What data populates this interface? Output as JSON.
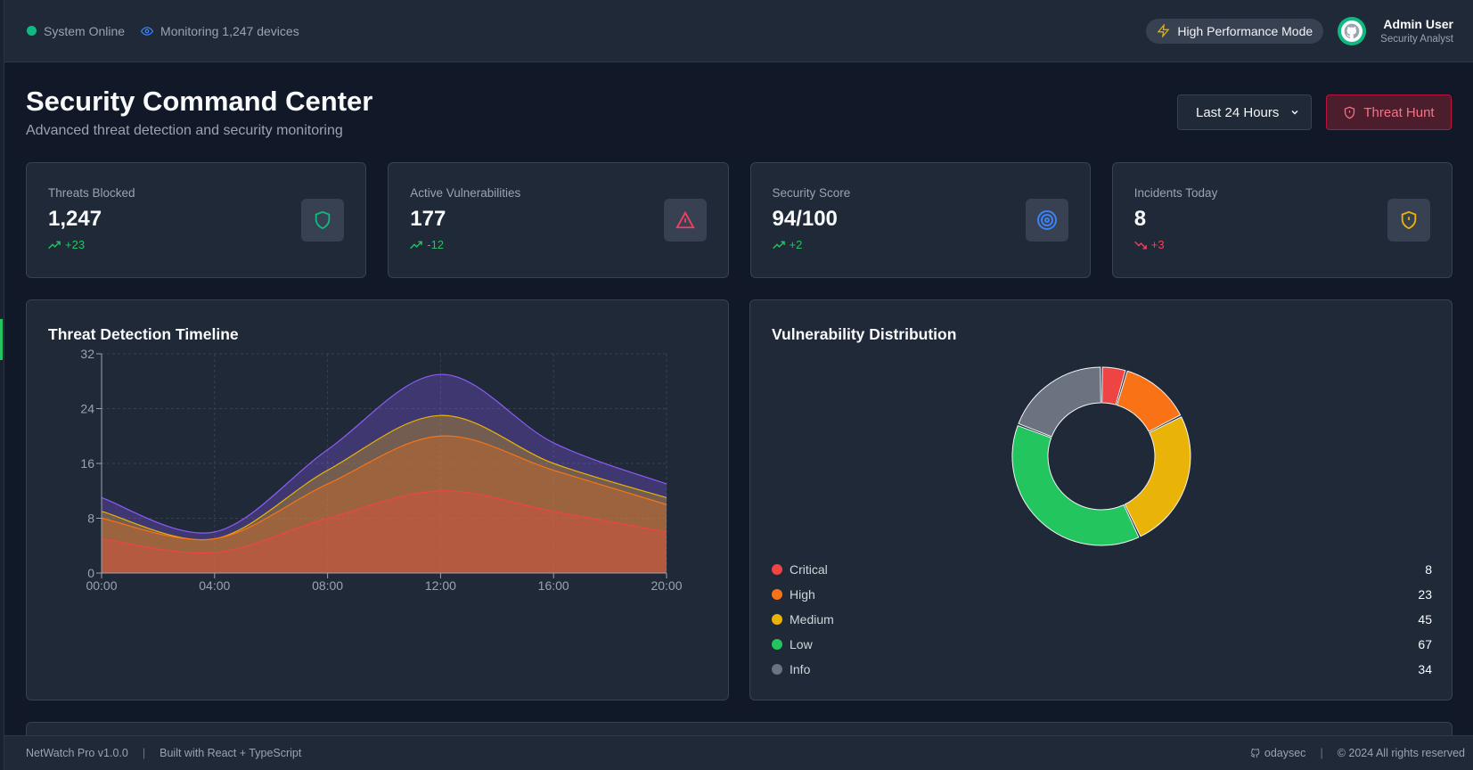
{
  "topbar": {
    "status": "System Online",
    "monitoring": "Monitoring 1,247 devices",
    "performance_mode": "High Performance Mode",
    "user": {
      "name": "Admin User",
      "role": "Security Analyst"
    }
  },
  "header": {
    "title": "Security Command Center",
    "subtitle": "Advanced threat detection and security monitoring",
    "time_range": "Last 24 Hours",
    "threat_hunt_label": "Threat Hunt"
  },
  "stats": [
    {
      "label": "Threats Blocked",
      "value": "1,247",
      "trend": "+23",
      "direction": "up",
      "icon": "shield-icon",
      "color": "#10b981"
    },
    {
      "label": "Active Vulnerabilities",
      "value": "177",
      "trend": "-12",
      "direction": "up",
      "icon": "warning-triangle-icon",
      "color": "#f43f5e"
    },
    {
      "label": "Security Score",
      "value": "94/100",
      "trend": "+2",
      "direction": "up",
      "icon": "target-icon",
      "color": "#3b82f6"
    },
    {
      "label": "Incidents Today",
      "value": "8",
      "trend": "+3",
      "direction": "down",
      "icon": "shield-alert-icon",
      "color": "#eab308"
    }
  ],
  "timeline": {
    "title": "Threat Detection Timeline"
  },
  "vulnerability": {
    "title": "Vulnerability Distribution"
  },
  "chart_data": [
    {
      "type": "area",
      "title": "Threat Detection Timeline",
      "x": [
        "00:00",
        "04:00",
        "08:00",
        "12:00",
        "16:00",
        "20:00"
      ],
      "ylim": [
        0,
        32
      ],
      "yticks": [
        0,
        8,
        16,
        24,
        32
      ],
      "stacked": false,
      "grid": true,
      "series": [
        {
          "values": [
            11,
            6,
            18,
            29,
            19,
            13
          ],
          "color": "#8b5cf6"
        },
        {
          "values": [
            9,
            5,
            15,
            23,
            16,
            11
          ],
          "color": "#eab308"
        },
        {
          "values": [
            8,
            5,
            13,
            20,
            15,
            10
          ],
          "color": "#f97316"
        },
        {
          "values": [
            5,
            3,
            8,
            12,
            9,
            6
          ],
          "color": "#ef4444"
        }
      ]
    },
    {
      "type": "pie",
      "title": "Vulnerability Distribution",
      "categories": [
        "Critical",
        "High",
        "Medium",
        "Low",
        "Info"
      ],
      "values": [
        8,
        23,
        45,
        67,
        34
      ],
      "colors": [
        "#ef4444",
        "#f97316",
        "#eab308",
        "#22c55e",
        "#6b7280"
      ],
      "donut": true
    }
  ],
  "footer": {
    "version": "NetWatch Pro v1.0.0",
    "built_with": "Built with React + TypeScript",
    "author": "odaysec",
    "copyright": "© 2024 All rights reserved"
  }
}
